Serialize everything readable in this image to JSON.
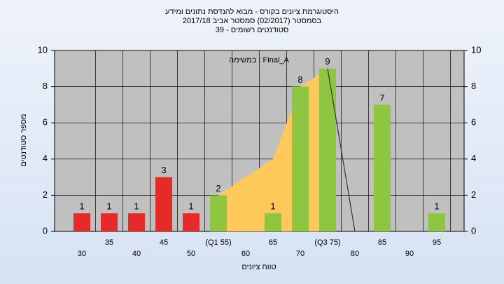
{
  "chart_data": {
    "type": "bar",
    "title_lines": [
      "היסטוגרמת ציונים בקורס - מבוא להנדסת נתונים ומידע",
      "בסמסטר  (02/2017)  סמסטר אביב 2017/18",
      "סטודנטים רשומים - 39"
    ],
    "annotation": "במשימה : Final_A",
    "x_label": "טווח ציונים",
    "y_label": "מספר סטודנטים",
    "categories": [
      "30",
      "35",
      "40",
      "45",
      "50",
      "(Q1 55)",
      "60",
      "65",
      "70",
      "(Q3 75)",
      "80",
      "85",
      "90",
      "95"
    ],
    "values": [
      1,
      1,
      1,
      3,
      1,
      2,
      0,
      1,
      8,
      9,
      0,
      7,
      0,
      1
    ],
    "colors": [
      "#e52a2a",
      "#e52a2a",
      "#e52a2a",
      "#e52a2a",
      "#e52a2a",
      "#8fc641",
      "#8fc641",
      "#8fc641",
      "#8fc641",
      "#8fc641",
      "#8fc641",
      "#8fc641",
      "#8fc641",
      "#8fc641"
    ],
    "area": {
      "color": "#ffc85a",
      "values": [
        null,
        null,
        null,
        null,
        null,
        2,
        3,
        4,
        8,
        9,
        null,
        null,
        null,
        null
      ]
    },
    "line": {
      "color": "#333333",
      "values": [
        null,
        null,
        null,
        null,
        null,
        null,
        null,
        null,
        null,
        9,
        0,
        null,
        null,
        null
      ]
    },
    "ylim": [
      0,
      10
    ],
    "yticks": [
      0,
      2,
      4,
      6,
      8,
      10
    ],
    "y2lim": [
      0,
      10
    ],
    "y2ticks": [
      0,
      2,
      4,
      6,
      8,
      10
    ],
    "grid": true
  }
}
